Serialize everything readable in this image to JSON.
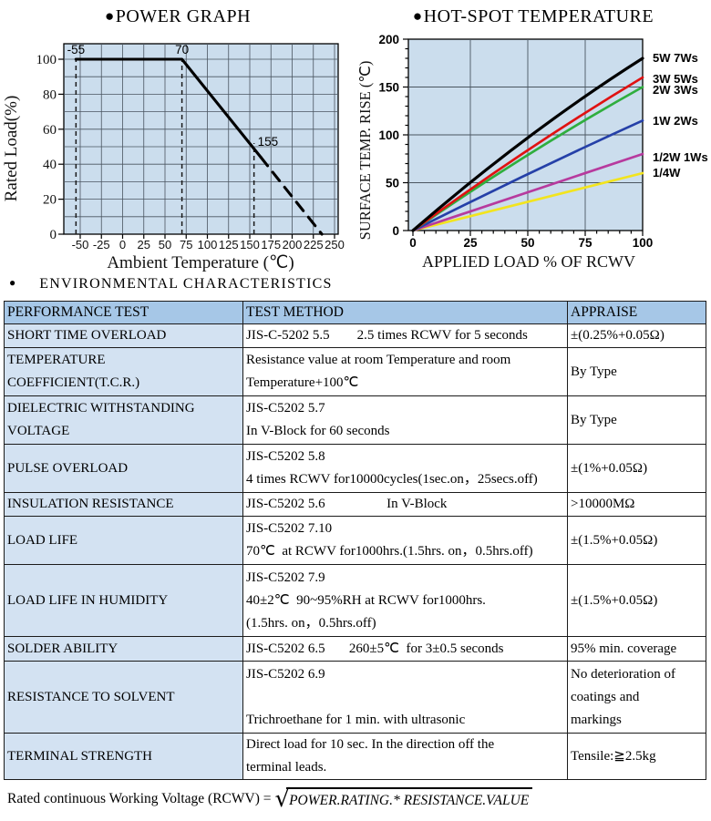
{
  "style": {
    "chart_bg": "#cbdded",
    "grid_color": "#4a5560",
    "table_header_bg": "#a6c7e7",
    "table_col1_bg": "#d3e2f2",
    "border_color": "#1b1b1b"
  },
  "chart_data": [
    {
      "type": "line",
      "title": "POWER GRAPH",
      "xlabel": "Ambient Temperature (℃)",
      "ylabel": "Rated Load(%)",
      "xlim": [
        -70,
        254
      ],
      "ylim": [
        0,
        109
      ],
      "x_ticks": [
        -50,
        -25,
        0,
        25,
        50,
        75,
        100,
        125,
        150,
        175,
        200,
        225,
        250
      ],
      "y_tick_labels": [
        0,
        20,
        40,
        60,
        80,
        100
      ],
      "y_grid_step": 10,
      "grid": true,
      "series": [
        {
          "name": "rated-load",
          "style": "solid",
          "color": "#000000",
          "points": [
            [
              -55,
              100
            ],
            [
              70,
              100
            ],
            [
              163,
              44
            ]
          ]
        },
        {
          "name": "rated-load-extrapolated",
          "style": "dashed",
          "color": "#000000",
          "points": [
            [
              163,
              44
            ],
            [
              235,
              0
            ]
          ]
        }
      ],
      "reference_lines": [
        {
          "x": -55,
          "label": "-55",
          "y_top": 100
        },
        {
          "x": 70,
          "label": "70",
          "y_top": 100
        },
        {
          "x": 155,
          "label": "155",
          "y_top": 52
        }
      ]
    },
    {
      "type": "line",
      "title": "HOT-SPOT TEMPERATURE",
      "xlabel": "APPLIED LOAD % OF RCWV",
      "ylabel": "SURFACE TEMP. RISE (℃)",
      "xlim": [
        0,
        100
      ],
      "ylim": [
        0,
        200
      ],
      "x_ticks": [
        0,
        25,
        50,
        75,
        100
      ],
      "y_ticks": [
        0,
        50,
        100,
        150,
        200
      ],
      "grid": true,
      "legend_position": "right",
      "series": [
        {
          "name": "5W 7Ws",
          "color": "#000000",
          "x": [
            0,
            50,
            100
          ],
          "y": [
            0,
            97,
            180
          ]
        },
        {
          "name": "3W 5Ws",
          "color": "#e01212",
          "x": [
            0,
            50,
            100
          ],
          "y": [
            0,
            84,
            160
          ]
        },
        {
          "name": "2W 3Ws",
          "color": "#2fae3e",
          "x": [
            0,
            50,
            100
          ],
          "y": [
            0,
            79,
            150
          ]
        },
        {
          "name": "1W 2Ws",
          "color": "#2540a8",
          "x": [
            0,
            50,
            100
          ],
          "y": [
            0,
            59,
            115
          ]
        },
        {
          "name": "1/2W 1Ws",
          "color": "#b73a9e",
          "x": [
            0,
            50,
            100
          ],
          "y": [
            0,
            40,
            80
          ]
        },
        {
          "name": "1/4W",
          "color": "#f2e41e",
          "x": [
            0,
            50,
            100
          ],
          "y": [
            0,
            30,
            60
          ]
        }
      ]
    }
  ],
  "section_heading": "ENVIRONMENTAL CHARACTERISTICS",
  "table": {
    "headers": [
      "PERFORMANCE TEST",
      "TEST METHOD",
      "APPRAISE"
    ],
    "rows": [
      {
        "h": 26,
        "test": [
          "SHORT TIME OVERLOAD"
        ],
        "method": [
          "JIS-C-5202 5.5        2.5 times RCWV for 5 seconds"
        ],
        "appraise": [
          "±(0.25%+0.05Ω)"
        ]
      },
      {
        "h": 53,
        "test": [
          "TEMPERATURE",
          "COEFFICIENT(T.C.R.)"
        ],
        "method": [
          "Resistance value at room Temperature and room",
          "Temperature+100℃"
        ],
        "appraise": [
          "By Type"
        ]
      },
      {
        "h": 53,
        "test": [
          "DIELECTRIC WITHSTANDING",
          "VOLTAGE"
        ],
        "method": [
          "JIS-C5202 5.7",
          "In V-Block for 60 seconds"
        ],
        "appraise": [
          "By Type"
        ]
      },
      {
        "h": 53,
        "test": [
          "PULSE OVERLOAD"
        ],
        "method": [
          "JIS-C5202 5.8",
          "4 times RCWV for10000cycles(1sec.on，25secs.off)"
        ],
        "appraise": [
          "±(1%+0.05Ω)"
        ]
      },
      {
        "h": 26,
        "test": [
          "INSULATION RESISTANCE"
        ],
        "method": [
          "JIS-C5202 5.6                  In V-Block"
        ],
        "appraise": [
          ">10000MΩ"
        ]
      },
      {
        "h": 53,
        "test": [
          "LOAD LIFE"
        ],
        "method": [
          "JIS-C5202 7.10",
          "70℃  at RCWV for1000hrs.(1.5hrs. on，0.5hrs.off)"
        ],
        "appraise": [
          "±(1.5%+0.05Ω)"
        ]
      },
      {
        "h": 79,
        "test": [
          "LOAD LIFE IN HUMIDITY"
        ],
        "method": [
          "JIS-C5202 7.9",
          "40±2℃  90~95%RH at RCWV for1000hrs.",
          "(1.5hrs. on，0.5hrs.off)"
        ],
        "appraise": [
          "±(1.5%+0.05Ω)"
        ]
      },
      {
        "h": 27,
        "test": [
          "SOLDER ABILITY"
        ],
        "method": [
          "JIS-C5202 6.5       260±5℃  for 3±0.5 seconds"
        ],
        "appraise": [
          "95% min. coverage"
        ]
      },
      {
        "h": 79,
        "test": [
          "RESISTANCE TO SOLVENT"
        ],
        "method": [
          "JIS-C5202 6.9",
          "",
          "Trichroethane for 1 min. with ultrasonic"
        ],
        "appraise": [
          "No deterioration of",
          "coatings and",
          "markings"
        ]
      },
      {
        "h": 51,
        "test": [
          "TERMINAL STRENGTH"
        ],
        "method": [
          "Direct load for 10 sec. In the direction off the",
          "terminal leads."
        ],
        "appraise": [
          "Tensile:≧2.5kg"
        ]
      }
    ]
  },
  "footer": {
    "prefix": "Rated continuous Working Voltage (RCWV) =",
    "radicand": "POWER.RATING.* RESISTANCE.VALUE"
  }
}
